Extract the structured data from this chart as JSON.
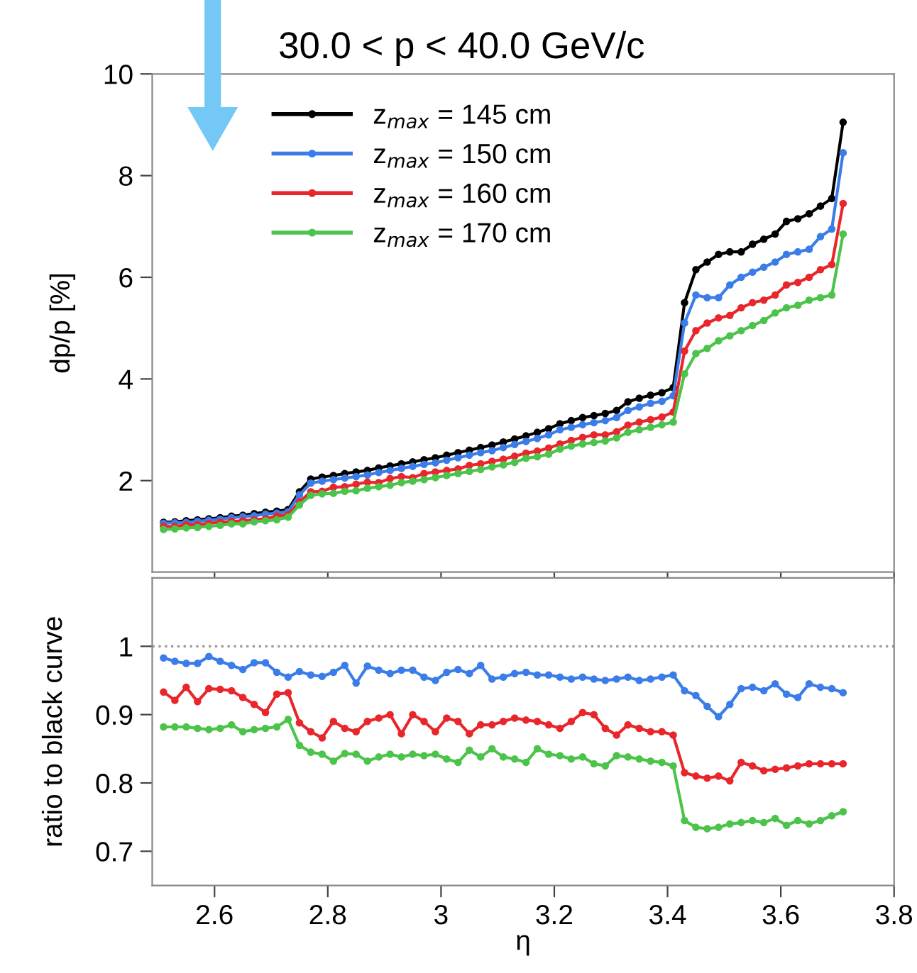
{
  "chart_data": [
    {
      "type": "line",
      "title": "30.0 < p < 40.0 GeV/c",
      "ylabel": "dp/p [%]",
      "marker": "circle",
      "legend": "top left",
      "tick_labels": "y",
      "x": [
        2.51,
        2.53,
        2.55,
        2.57,
        2.59,
        2.61,
        2.63,
        2.65,
        2.67,
        2.69,
        2.71,
        2.73,
        2.75,
        2.77,
        2.79,
        2.81,
        2.83,
        2.85,
        2.87,
        2.89,
        2.91,
        2.93,
        2.95,
        2.97,
        2.99,
        3.01,
        3.03,
        3.05,
        3.07,
        3.09,
        3.11,
        3.13,
        3.15,
        3.17,
        3.19,
        3.21,
        3.23,
        3.25,
        3.27,
        3.29,
        3.31,
        3.33,
        3.35,
        3.37,
        3.39,
        3.41,
        3.43,
        3.45,
        3.47,
        3.49,
        3.51,
        3.53,
        3.55,
        3.57,
        3.59,
        3.61,
        3.63,
        3.65,
        3.67,
        3.69,
        3.71
      ],
      "xlim": [
        2.49,
        3.8
      ],
      "xticks": [
        2.6,
        2.8,
        3,
        3.2,
        3.4,
        3.6,
        3.8
      ],
      "ylim": [
        0.2,
        10
      ],
      "yticks": [
        2,
        4,
        6,
        8,
        10
      ],
      "series": [
        {
          "name": "z$_{max}$ = 145 cm",
          "color": "#000000",
          "values": [
            1.18,
            1.19,
            1.21,
            1.23,
            1.25,
            1.27,
            1.3,
            1.32,
            1.35,
            1.38,
            1.4,
            1.43,
            1.78,
            2.03,
            2.07,
            2.1,
            2.14,
            2.17,
            2.2,
            2.25,
            2.29,
            2.33,
            2.37,
            2.41,
            2.45,
            2.5,
            2.55,
            2.6,
            2.65,
            2.7,
            2.76,
            2.82,
            2.88,
            2.95,
            3.02,
            3.12,
            3.18,
            3.24,
            3.28,
            3.32,
            3.38,
            3.55,
            3.62,
            3.68,
            3.73,
            3.83,
            5.5,
            6.15,
            6.3,
            6.45,
            6.5,
            6.5,
            6.65,
            6.75,
            6.85,
            7.1,
            7.15,
            7.25,
            7.4,
            7.55,
            9.05
          ]
        },
        {
          "name": "z$_{max}$ = 150 cm",
          "color": "#3b7de8",
          "values": [
            1.16,
            1.17,
            1.18,
            1.2,
            1.22,
            1.24,
            1.27,
            1.29,
            1.31,
            1.34,
            1.36,
            1.39,
            1.72,
            1.95,
            1.99,
            2.02,
            2.05,
            2.08,
            2.11,
            2.16,
            2.2,
            2.24,
            2.28,
            2.32,
            2.35,
            2.4,
            2.45,
            2.5,
            2.55,
            2.59,
            2.65,
            2.71,
            2.77,
            2.83,
            2.9,
            3.0,
            3.05,
            3.1,
            3.14,
            3.18,
            3.24,
            3.38,
            3.45,
            3.52,
            3.56,
            3.67,
            5.1,
            5.65,
            5.6,
            5.6,
            5.85,
            6.0,
            6.1,
            6.2,
            6.3,
            6.45,
            6.5,
            6.55,
            6.8,
            6.95,
            8.45
          ]
        },
        {
          "name": "z$_{max}$ = 160 cm",
          "color": "#e8262b",
          "values": [
            1.1,
            1.1,
            1.13,
            1.13,
            1.16,
            1.18,
            1.2,
            1.21,
            1.23,
            1.25,
            1.3,
            1.33,
            1.58,
            1.78,
            1.79,
            1.87,
            1.88,
            1.93,
            1.97,
            1.96,
            2.04,
            2.08,
            2.06,
            2.14,
            2.17,
            2.2,
            2.23,
            2.3,
            2.33,
            2.38,
            2.42,
            2.48,
            2.54,
            2.58,
            2.64,
            2.72,
            2.79,
            2.85,
            2.9,
            2.9,
            2.96,
            3.09,
            3.15,
            3.2,
            3.25,
            3.35,
            4.55,
            4.95,
            5.1,
            5.2,
            5.25,
            5.4,
            5.5,
            5.55,
            5.65,
            5.85,
            5.9,
            6.0,
            6.15,
            6.25,
            7.45
          ]
        },
        {
          "name": "z$_{max}$ = 170 cm",
          "color": "#4cc34a",
          "values": [
            1.04,
            1.05,
            1.07,
            1.08,
            1.1,
            1.12,
            1.15,
            1.15,
            1.19,
            1.21,
            1.23,
            1.28,
            1.52,
            1.71,
            1.74,
            1.75,
            1.79,
            1.8,
            1.85,
            1.88,
            1.91,
            1.96,
            1.99,
            2.02,
            2.06,
            2.1,
            2.14,
            2.18,
            2.22,
            2.27,
            2.31,
            2.36,
            2.44,
            2.47,
            2.52,
            2.62,
            2.68,
            2.72,
            2.75,
            2.78,
            2.84,
            2.95,
            3.0,
            3.05,
            3.1,
            3.15,
            4.1,
            4.5,
            4.6,
            4.75,
            4.85,
            4.95,
            5.05,
            5.15,
            5.3,
            5.4,
            5.45,
            5.55,
            5.6,
            5.65,
            6.85
          ]
        }
      ]
    },
    {
      "type": "line",
      "xlabel": "η",
      "ylabel": "ratio to black curve",
      "marker": "circle",
      "x": [
        2.51,
        2.53,
        2.55,
        2.57,
        2.59,
        2.61,
        2.63,
        2.65,
        2.67,
        2.69,
        2.71,
        2.73,
        2.75,
        2.77,
        2.79,
        2.81,
        2.83,
        2.85,
        2.87,
        2.89,
        2.91,
        2.93,
        2.95,
        2.97,
        2.99,
        3.01,
        3.03,
        3.05,
        3.07,
        3.09,
        3.11,
        3.13,
        3.15,
        3.17,
        3.19,
        3.21,
        3.23,
        3.25,
        3.27,
        3.29,
        3.31,
        3.33,
        3.35,
        3.37,
        3.39,
        3.41,
        3.43,
        3.45,
        3.47,
        3.49,
        3.51,
        3.53,
        3.55,
        3.57,
        3.59,
        3.61,
        3.63,
        3.65,
        3.67,
        3.69,
        3.71
      ],
      "xlim": [
        2.49,
        3.8
      ],
      "xticks": [
        2.6,
        2.8,
        3,
        3.2,
        3.4,
        3.6,
        3.8
      ],
      "ylim": [
        0.65,
        1.1
      ],
      "yticks": [
        0.7,
        0.8,
        0.9,
        1
      ],
      "ref_lines": [
        {
          "axis": "y",
          "value": 1,
          "color": "#999999",
          "line_style": "dotted"
        }
      ],
      "series": [
        {
          "color": "#3b7de8",
          "values": [
            0.983,
            0.978,
            0.975,
            0.975,
            0.985,
            0.978,
            0.972,
            0.966,
            0.976,
            0.976,
            0.962,
            0.955,
            0.963,
            0.958,
            0.956,
            0.962,
            0.972,
            0.946,
            0.971,
            0.965,
            0.96,
            0.965,
            0.965,
            0.955,
            0.95,
            0.962,
            0.966,
            0.96,
            0.972,
            0.952,
            0.955,
            0.96,
            0.962,
            0.958,
            0.958,
            0.955,
            0.952,
            0.955,
            0.952,
            0.95,
            0.952,
            0.955,
            0.95,
            0.952,
            0.955,
            0.958,
            0.935,
            0.928,
            0.912,
            0.897,
            0.915,
            0.938,
            0.94,
            0.935,
            0.945,
            0.93,
            0.925,
            0.945,
            0.94,
            0.938,
            0.932
          ]
        },
        {
          "color": "#e8262b",
          "values": [
            0.933,
            0.921,
            0.94,
            0.919,
            0.938,
            0.937,
            0.935,
            0.925,
            0.915,
            0.903,
            0.93,
            0.932,
            0.888,
            0.875,
            0.866,
            0.89,
            0.88,
            0.875,
            0.89,
            0.895,
            0.9,
            0.872,
            0.9,
            0.89,
            0.875,
            0.895,
            0.89,
            0.872,
            0.885,
            0.885,
            0.89,
            0.895,
            0.892,
            0.89,
            0.885,
            0.88,
            0.89,
            0.903,
            0.9,
            0.88,
            0.87,
            0.885,
            0.88,
            0.875,
            0.875,
            0.87,
            0.815,
            0.81,
            0.807,
            0.81,
            0.803,
            0.83,
            0.825,
            0.818,
            0.82,
            0.822,
            0.825,
            0.828,
            0.828,
            0.828,
            0.828
          ]
        },
        {
          "color": "#4cc34a",
          "values": [
            0.882,
            0.882,
            0.882,
            0.88,
            0.878,
            0.88,
            0.885,
            0.875,
            0.878,
            0.88,
            0.882,
            0.893,
            0.855,
            0.845,
            0.842,
            0.832,
            0.843,
            0.842,
            0.832,
            0.838,
            0.842,
            0.838,
            0.842,
            0.84,
            0.842,
            0.835,
            0.83,
            0.848,
            0.838,
            0.85,
            0.838,
            0.835,
            0.83,
            0.85,
            0.842,
            0.84,
            0.835,
            0.838,
            0.828,
            0.825,
            0.84,
            0.838,
            0.835,
            0.832,
            0.83,
            0.825,
            0.745,
            0.735,
            0.733,
            0.735,
            0.74,
            0.742,
            0.745,
            0.742,
            0.748,
            0.738,
            0.745,
            0.74,
            0.745,
            0.752,
            0.758
          ]
        }
      ]
    }
  ]
}
